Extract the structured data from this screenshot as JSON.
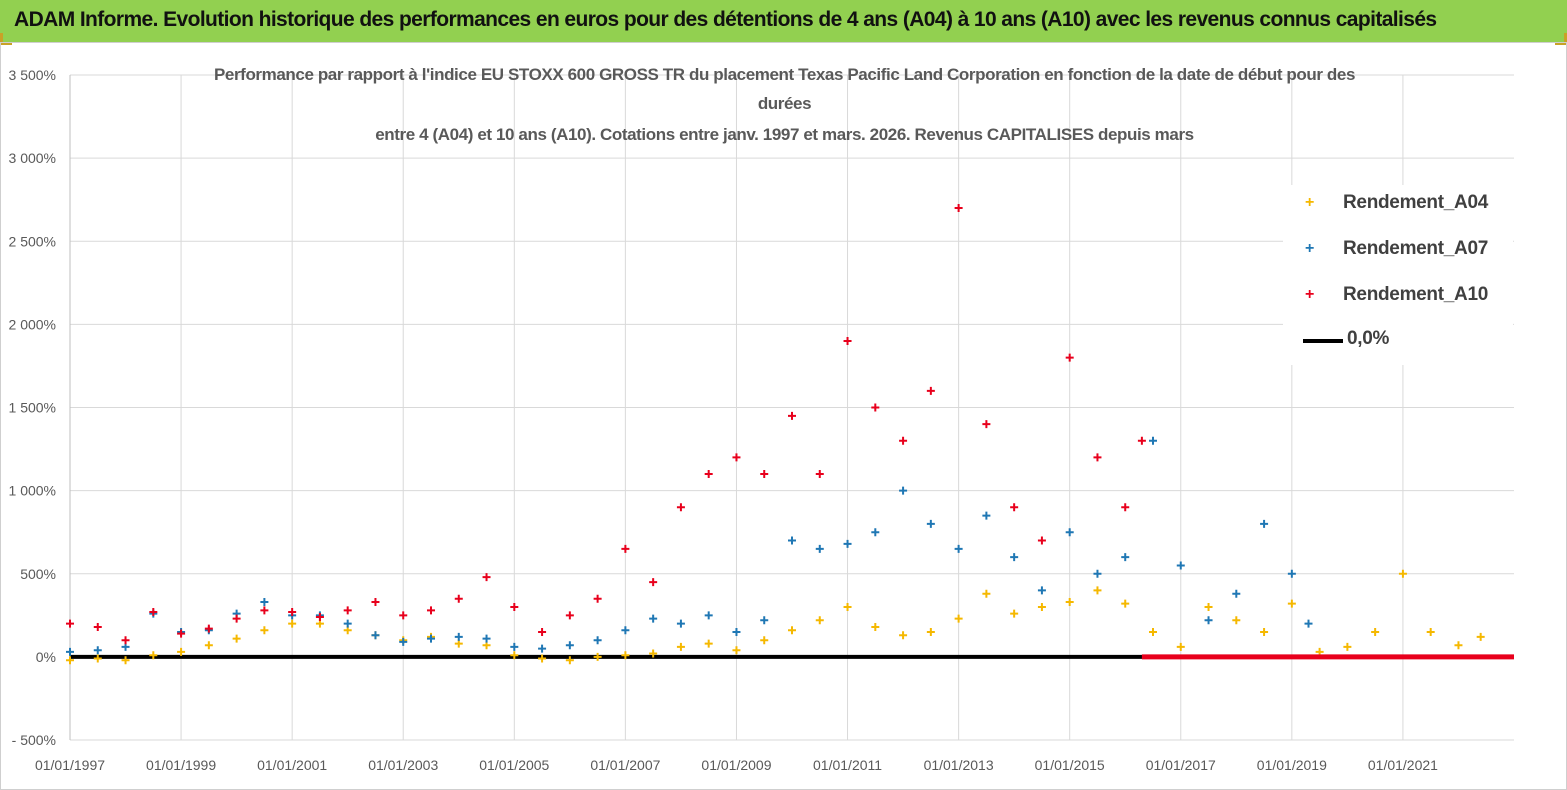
{
  "banner": {
    "text": "ADAM Informe. Evolution historique des performances en euros pour des détentions de 4 ans (A04) à 10 ans (A10) avec les revenus connus capitalisés"
  },
  "colors": {
    "banner": "#92d050",
    "a04": "#f5b800",
    "a07": "#1f77b4",
    "a10": "#e8001c",
    "zero": "#000000"
  },
  "chart_data": {
    "type": "scatter",
    "title_lines": [
      "Performance par rapport à l'indice EU STOXX 600 GROSS TR  du placement Texas Pacific Land Corporation en fonction de la date de début pour des",
      "durées",
      "entre 4 (A04) et 10 ans (A10).  Cotations entre janv. 1997 et mars. 2026. Revenus CAPITALISES depuis mars"
    ],
    "xlabel": "",
    "ylabel": "",
    "x_range": [
      1997.0,
      2023.0
    ],
    "ylim": [
      -500,
      3500
    ],
    "y_ticks": [
      -500,
      0,
      500,
      1000,
      1500,
      2000,
      2500,
      3000,
      3500
    ],
    "y_tick_labels": [
      "- 500%",
      "0%",
      "500%",
      "1 000%",
      "1 500%",
      "2 000%",
      "2 500%",
      "3 000%",
      "3 500%"
    ],
    "x_ticks": [
      1997,
      1999,
      2001,
      2003,
      2005,
      2007,
      2009,
      2011,
      2013,
      2015,
      2017,
      2019,
      2021
    ],
    "x_tick_labels": [
      "01/01/1997",
      "01/01/1999",
      "01/01/2001",
      "01/01/2003",
      "01/01/2005",
      "01/01/2007",
      "01/01/2009",
      "01/01/2011",
      "01/01/2013",
      "01/01/2015",
      "01/01/2017",
      "01/01/2019",
      "01/01/2021"
    ],
    "legend_position": "top-right",
    "legend": [
      "Rendement_A04",
      "Rendement_A07",
      "Rendement_A10",
      "0,0%"
    ],
    "series": [
      {
        "name": "Rendement_A04",
        "x": [
          1997.0,
          1997.5,
          1998.0,
          1998.5,
          1999.0,
          1999.5,
          2000.0,
          2000.5,
          2001.0,
          2001.5,
          2002.0,
          2002.5,
          2003.0,
          2003.5,
          2004.0,
          2004.5,
          2005.0,
          2005.5,
          2006.0,
          2006.5,
          2007.0,
          2007.5,
          2008.0,
          2008.5,
          2009.0,
          2009.5,
          2010.0,
          2010.5,
          2011.0,
          2011.5,
          2012.0,
          2012.5,
          2013.0,
          2013.5,
          2014.0,
          2014.5,
          2015.0,
          2015.5,
          2016.0,
          2016.5,
          2017.0,
          2017.5,
          2018.0,
          2018.5,
          2019.0,
          2019.5,
          2020.0,
          2020.5,
          2021.0,
          2021.5,
          2022.0,
          2022.4
        ],
        "y": [
          -20,
          -10,
          -20,
          10,
          30,
          70,
          110,
          160,
          200,
          200,
          160,
          130,
          100,
          120,
          80,
          70,
          10,
          -10,
          -20,
          0,
          10,
          20,
          60,
          80,
          40,
          100,
          160,
          220,
          300,
          180,
          130,
          150,
          230,
          380,
          260,
          300,
          330,
          400,
          320,
          150,
          60,
          300,
          220,
          150,
          320,
          30,
          60,
          150,
          500,
          150,
          70,
          120
        ]
      },
      {
        "name": "Rendement_A07",
        "x": [
          1997.0,
          1997.5,
          1998.0,
          1998.5,
          1999.0,
          1999.5,
          2000.0,
          2000.5,
          2001.0,
          2001.5,
          2002.0,
          2002.5,
          2003.0,
          2003.5,
          2004.0,
          2004.5,
          2005.0,
          2005.5,
          2006.0,
          2006.5,
          2007.0,
          2007.5,
          2008.0,
          2008.5,
          2009.0,
          2009.5,
          2010.0,
          2010.5,
          2011.0,
          2011.5,
          2012.0,
          2012.5,
          2013.0,
          2013.5,
          2014.0,
          2014.5,
          2015.0,
          2015.5,
          2016.0,
          2016.5,
          2017.0,
          2017.5,
          2018.0,
          2018.5,
          2019.0,
          2019.3
        ],
        "y": [
          30,
          40,
          60,
          260,
          150,
          160,
          260,
          330,
          250,
          250,
          200,
          130,
          90,
          110,
          120,
          110,
          60,
          50,
          70,
          100,
          160,
          230,
          200,
          250,
          150,
          220,
          700,
          650,
          680,
          750,
          1000,
          800,
          650,
          850,
          600,
          400,
          750,
          500,
          600,
          1300,
          550,
          220,
          380,
          800,
          500,
          200
        ]
      },
      {
        "name": "Rendement_A10",
        "x": [
          1997.0,
          1997.5,
          1998.0,
          1998.5,
          1999.0,
          1999.5,
          2000.0,
          2000.5,
          2001.0,
          2001.5,
          2002.0,
          2002.5,
          2003.0,
          2003.5,
          2004.0,
          2004.5,
          2005.0,
          2005.5,
          2006.0,
          2006.5,
          2007.0,
          2007.5,
          2008.0,
          2008.5,
          2009.0,
          2009.5,
          2010.0,
          2010.5,
          2011.0,
          2011.5,
          2012.0,
          2012.5,
          2013.0,
          2013.5,
          2014.0,
          2014.5,
          2015.0,
          2015.5,
          2016.0,
          2016.3
        ],
        "y": [
          200,
          180,
          100,
          270,
          140,
          170,
          230,
          280,
          270,
          240,
          280,
          330,
          250,
          280,
          350,
          480,
          300,
          150,
          250,
          350,
          650,
          450,
          900,
          1100,
          1200,
          1100,
          1450,
          1100,
          1900,
          1500,
          1300,
          1600,
          2700,
          1400,
          900,
          700,
          1800,
          1200,
          900,
          1300
        ]
      },
      {
        "name": "0,0%",
        "x": [
          1997.0,
          2023.0
        ],
        "y": [
          0,
          0
        ]
      }
    ]
  }
}
